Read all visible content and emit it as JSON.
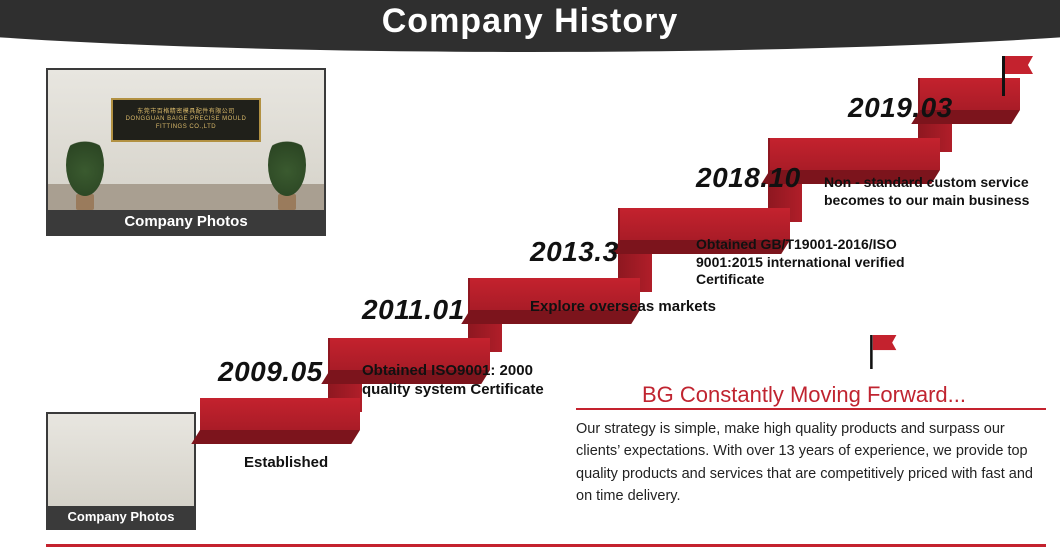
{
  "header": {
    "title": "Company History"
  },
  "colors": {
    "header_bg": "#2f2f2f",
    "red": "#c4222e",
    "red_dark": "#7c141c",
    "text": "#111111",
    "tagline": "#c02430",
    "white": "#ffffff"
  },
  "photos": {
    "card1": {
      "caption": "Company Photos",
      "sign_text_cn": "东莞市百格精密模具配件有限公司",
      "sign_text_en": "DONGGUAN BAIGE PRECISE MOULD FITTINGS CO.,LTD"
    },
    "card2": {
      "caption": "Company Photos"
    }
  },
  "timeline": {
    "type": "step-infographic",
    "step_color": "#c4222e",
    "step_shadow": "#7c141c",
    "milestones": [
      {
        "date": "2009.05",
        "text": "Established"
      },
      {
        "date": "2011.01",
        "text": "Obtained ISO9001: 2000 quality system Certificate"
      },
      {
        "date": "2013.3",
        "text": "Explore overseas markets"
      },
      {
        "date": "2018.10",
        "text": "Obtained GB/T19001-2016/ISO 9001:2015 international verified Certificate"
      },
      {
        "date": "2019.03",
        "text": "Non - standard custom service becomes to our main business"
      }
    ],
    "date_fontsize": 28,
    "date_fontweight": 900,
    "text_fontsize": 15,
    "text_fontweight": 700
  },
  "closing": {
    "tagline": "BG Constantly Moving Forward...",
    "strategy": "Our strategy is simple, make high quality products and surpass our clients’ expectations. With over 13 years of experience, we provide top quality products and services that are competitively priced with fast and on time delivery."
  }
}
